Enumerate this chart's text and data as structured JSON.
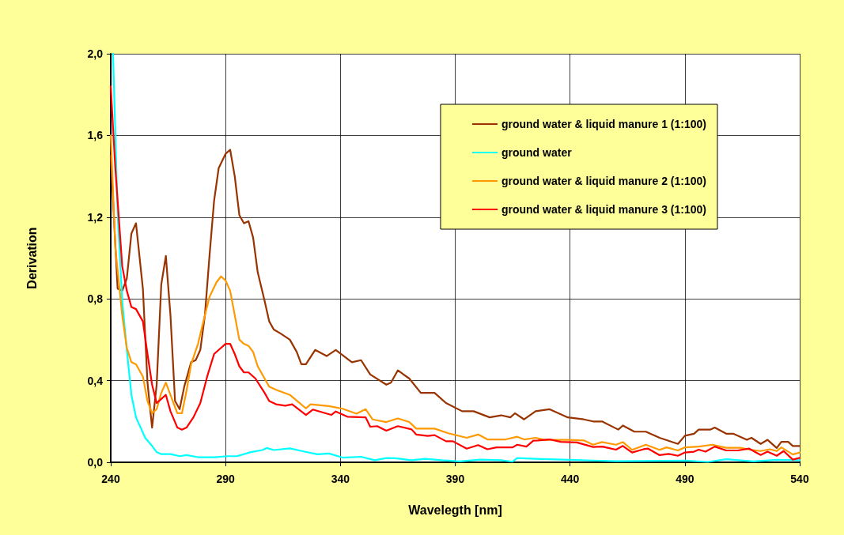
{
  "chart_data": {
    "type": "line",
    "xlabel": "Wavelegth [nm]",
    "ylabel": "Derivation",
    "xlim": [
      240,
      540
    ],
    "xticks": [
      240,
      290,
      340,
      390,
      440,
      490,
      540
    ],
    "ylim": [
      0,
      2
    ],
    "yticks": [
      {
        "value": 0,
        "label": "0,0"
      },
      {
        "value": 0.4,
        "label": "0,4"
      },
      {
        "value": 0.8,
        "label": "0,8"
      },
      {
        "value": 1.2,
        "label": "1,2"
      },
      {
        "value": 1.6,
        "label": "1,6"
      },
      {
        "value": 2,
        "label": "2,0"
      }
    ],
    "grid": true,
    "legend": "top right",
    "marker": "none",
    "line_style": "solid",
    "series": [
      {
        "name": "ground water & liquid manure 1 (1:100)",
        "color": "#993300",
        "x": [
          240,
          243,
          245,
          247,
          249,
          251,
          254,
          256,
          258,
          260,
          262,
          264,
          266,
          268,
          270,
          272,
          275,
          277,
          279,
          281,
          283,
          285,
          287,
          290,
          292,
          294,
          296,
          298,
          300,
          302,
          304,
          307,
          309,
          311,
          314,
          318,
          321,
          323,
          325,
          329,
          334,
          338,
          345,
          349,
          353,
          360,
          362,
          365,
          370,
          375,
          381,
          386,
          393,
          398,
          405,
          410,
          414,
          416,
          420,
          425,
          431,
          439,
          446,
          450,
          454,
          461,
          463,
          468,
          473,
          479,
          487,
          490,
          494,
          496,
          501,
          503,
          508,
          511,
          517,
          519,
          523,
          526,
          530,
          532,
          535,
          537,
          540
        ],
        "values": [
          1.5,
          0.85,
          0.84,
          0.9,
          1.12,
          1.17,
          0.85,
          0.39,
          0.17,
          0.38,
          0.87,
          1.01,
          0.72,
          0.3,
          0.26,
          0.37,
          0.49,
          0.5,
          0.55,
          0.72,
          1.01,
          1.28,
          1.44,
          1.51,
          1.53,
          1.4,
          1.21,
          1.17,
          1.18,
          1.1,
          0.93,
          0.79,
          0.69,
          0.65,
          0.63,
          0.6,
          0.54,
          0.48,
          0.48,
          0.55,
          0.52,
          0.55,
          0.49,
          0.5,
          0.43,
          0.38,
          0.39,
          0.45,
          0.41,
          0.34,
          0.34,
          0.29,
          0.25,
          0.25,
          0.22,
          0.23,
          0.22,
          0.24,
          0.21,
          0.25,
          0.26,
          0.22,
          0.21,
          0.2,
          0.2,
          0.16,
          0.18,
          0.15,
          0.15,
          0.12,
          0.09,
          0.13,
          0.14,
          0.16,
          0.16,
          0.17,
          0.14,
          0.14,
          0.11,
          0.12,
          0.09,
          0.11,
          0.07,
          0.1,
          0.1,
          0.08,
          0.08
        ]
      },
      {
        "name": "ground water",
        "color": "#00ffff",
        "x": [
          241,
          243,
          245,
          247,
          249,
          251,
          255,
          258,
          260,
          262,
          266,
          270,
          273,
          278,
          285,
          291,
          295,
          301,
          306,
          308,
          311,
          318,
          324,
          330,
          335,
          341,
          349,
          355,
          360,
          364,
          371,
          377,
          384,
          392,
          401,
          410,
          415,
          417,
          425,
          440,
          460,
          490,
          500,
          508,
          520,
          530,
          540
        ],
        "values": [
          2,
          1.22,
          0.79,
          0.55,
          0.33,
          0.22,
          0.12,
          0.08,
          0.05,
          0.04,
          0.04,
          0.03,
          0.035,
          0.025,
          0.025,
          0.03,
          0.03,
          0.05,
          0.06,
          0.07,
          0.06,
          0.068,
          0.053,
          0.039,
          0.043,
          0.023,
          0.027,
          0.01,
          0.021,
          0.02,
          0.01,
          0.017,
          0.01,
          0.004,
          0.013,
          0.01,
          0.003,
          0.021,
          0.017,
          0.012,
          0.005,
          0.008,
          0.002,
          0.015,
          0.004,
          0.012,
          0.01
        ]
      },
      {
        "name": "ground water & liquid manure 2 (1:100)",
        "color": "#ff9900",
        "x": [
          240,
          242,
          245,
          247,
          249,
          251,
          254,
          256,
          258,
          260,
          262,
          264,
          266,
          269,
          271,
          273,
          275,
          278,
          281,
          283,
          286,
          288,
          290,
          292,
          294,
          296,
          298,
          300,
          302,
          304,
          307,
          309,
          312,
          318,
          325,
          327,
          335,
          341,
          347,
          351,
          354,
          360,
          365,
          370,
          373,
          381,
          387,
          395,
          400,
          404,
          412,
          417,
          420,
          425,
          429,
          439,
          446,
          450,
          454,
          460,
          463,
          467,
          473,
          479,
          482,
          487,
          490,
          496,
          502,
          508,
          514,
          519,
          523,
          527,
          530,
          532,
          537,
          540
        ],
        "values": [
          1.6,
          1.05,
          0.72,
          0.56,
          0.49,
          0.48,
          0.42,
          0.3,
          0.24,
          0.26,
          0.34,
          0.39,
          0.33,
          0.24,
          0.24,
          0.35,
          0.48,
          0.58,
          0.72,
          0.81,
          0.88,
          0.91,
          0.89,
          0.84,
          0.72,
          0.6,
          0.58,
          0.57,
          0.54,
          0.47,
          0.41,
          0.37,
          0.355,
          0.33,
          0.264,
          0.284,
          0.275,
          0.262,
          0.238,
          0.26,
          0.21,
          0.197,
          0.215,
          0.197,
          0.165,
          0.165,
          0.142,
          0.12,
          0.136,
          0.112,
          0.112,
          0.125,
          0.112,
          0.12,
          0.11,
          0.11,
          0.107,
          0.086,
          0.099,
          0.086,
          0.099,
          0.061,
          0.086,
          0.061,
          0.073,
          0.058,
          0.073,
          0.077,
          0.086,
          0.071,
          0.071,
          0.061,
          0.055,
          0.064,
          0.055,
          0.073,
          0.038,
          0.048
        ]
      },
      {
        "name": "ground water & liquid manure 3 (1:100)",
        "color": "#ff0000",
        "x": [
          240,
          242,
          244,
          245,
          247,
          249,
          251,
          254,
          256,
          258,
          260,
          262,
          264,
          266,
          269,
          271,
          273,
          276,
          279,
          282,
          285,
          288,
          290,
          292,
          294,
          296,
          298,
          300,
          303,
          307,
          309,
          312,
          316,
          319,
          325,
          328,
          336,
          338,
          343,
          351,
          353,
          356,
          360,
          365,
          371,
          373,
          378,
          381,
          386,
          389,
          395,
          400,
          404,
          408,
          415,
          417,
          421,
          424,
          426,
          431,
          436,
          443,
          450,
          454,
          460,
          463,
          467,
          472,
          474,
          479,
          483,
          487,
          490,
          494,
          496,
          499,
          503,
          508,
          513,
          518,
          523,
          526,
          530,
          533,
          537,
          540
        ],
        "values": [
          1.84,
          1.44,
          1.12,
          0.96,
          0.84,
          0.76,
          0.75,
          0.69,
          0.53,
          0.38,
          0.29,
          0.31,
          0.33,
          0.25,
          0.17,
          0.16,
          0.17,
          0.22,
          0.29,
          0.42,
          0.53,
          0.56,
          0.58,
          0.58,
          0.53,
          0.47,
          0.44,
          0.44,
          0.41,
          0.34,
          0.3,
          0.284,
          0.277,
          0.284,
          0.232,
          0.258,
          0.232,
          0.249,
          0.223,
          0.22,
          0.174,
          0.177,
          0.155,
          0.177,
          0.161,
          0.136,
          0.129,
          0.133,
          0.103,
          0.103,
          0.067,
          0.084,
          0.064,
          0.073,
          0.073,
          0.086,
          0.077,
          0.106,
          0.107,
          0.112,
          0.1,
          0.097,
          0.075,
          0.077,
          0.062,
          0.08,
          0.048,
          0.064,
          0.067,
          0.035,
          0.041,
          0.032,
          0.048,
          0.052,
          0.062,
          0.052,
          0.077,
          0.058,
          0.058,
          0.067,
          0.036,
          0.052,
          0.032,
          0.055,
          0.013,
          0.022
        ]
      }
    ]
  }
}
